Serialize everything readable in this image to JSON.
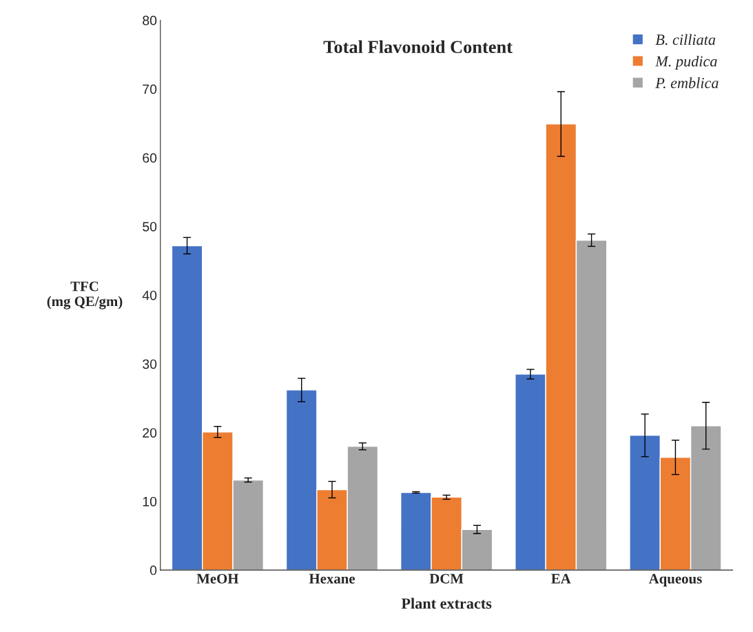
{
  "chart_data": {
    "type": "bar",
    "title": "Total Flavonoid Content",
    "xlabel": "Plant extracts",
    "ylabel": "TFC\n(mg QE/gm)",
    "categories": [
      "MeOH",
      "Hexane",
      "DCM",
      "EA",
      "Aqueous"
    ],
    "series": [
      {
        "name": "B. cilliata",
        "color": "#4472c4",
        "values": [
          47.2,
          26.2,
          11.3,
          28.5,
          19.6
        ],
        "errors": [
          1.2,
          1.7,
          0.1,
          0.7,
          3.1
        ]
      },
      {
        "name": "M. pudica",
        "color": "#ed7d31",
        "values": [
          20.1,
          11.7,
          10.6,
          64.9,
          16.4
        ],
        "errors": [
          0.8,
          1.2,
          0.3,
          4.7,
          2.5
        ]
      },
      {
        "name": "P. emblica",
        "color": "#a5a5a5",
        "values": [
          13.1,
          18.0,
          5.9,
          48.0,
          21.0
        ],
        "errors": [
          0.3,
          0.5,
          0.6,
          0.9,
          3.4
        ]
      }
    ],
    "ylim": [
      0,
      80
    ],
    "yticks": [
      0,
      10,
      20,
      30,
      40,
      50,
      60,
      70,
      80
    ],
    "grid": false,
    "legend": "top right"
  }
}
